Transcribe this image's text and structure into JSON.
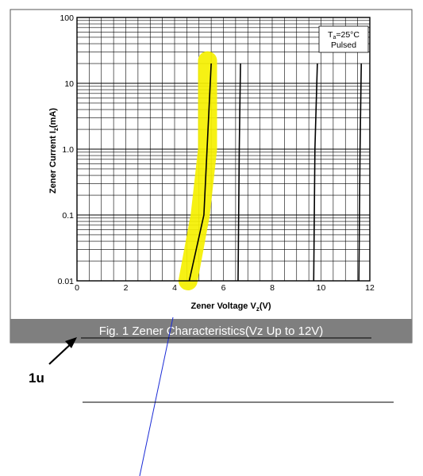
{
  "figure": {
    "caption": "Fig. 1  Zener Characteristics(Vz Up to 12V)",
    "annotation_text": "1u"
  },
  "chart_data": {
    "type": "line",
    "xlabel_main": "Zener Voltage  V",
    "xlabel_sub": "z",
    "xlabel_unit": "(V)",
    "ylabel_main": "Zener Current  I",
    "ylabel_sub": "z",
    "ylabel_unit": "(mA)",
    "xlim": [
      0,
      12
    ],
    "ylim": [
      0.01,
      100
    ],
    "yscale": "log",
    "grid": true,
    "x_ticks": [
      0,
      2,
      4,
      6,
      8,
      10,
      12
    ],
    "x_tick_labels": [
      "0",
      "2",
      "4",
      "6",
      "8",
      "10",
      "12"
    ],
    "y_ticks": [
      0.01,
      0.1,
      1.0,
      10,
      100
    ],
    "y_tick_labels": [
      "0.01",
      "0.1",
      "1.0",
      "10",
      "100"
    ],
    "legend_box": {
      "line1_main": "T",
      "line1_sub": "a",
      "line1_rest": "=25°C",
      "line2": "Pulsed",
      "placement": "top-right"
    },
    "series": [
      {
        "x": [
          4.6,
          5.2,
          5.5
        ],
        "y": [
          0.01,
          0.1,
          20
        ]
      },
      {
        "x": [
          6.6,
          6.65,
          6.7
        ],
        "y": [
          0.01,
          1,
          20
        ]
      },
      {
        "x": [
          9.7,
          9.75,
          9.85
        ],
        "y": [
          0.01,
          1,
          20
        ]
      },
      {
        "x": [
          11.55,
          11.6,
          11.65
        ],
        "y": [
          0.01,
          1,
          20
        ]
      }
    ],
    "highlight": {
      "color": "#f5f000",
      "x": [
        4.55,
        5.05,
        5.35,
        5.35
      ],
      "y": [
        0.01,
        0.1,
        1,
        22
      ]
    }
  },
  "colors": {
    "caption_band": "#7f7f7f",
    "caption_text": "#ffffff",
    "frame": "#555555",
    "grid": "#000000",
    "markup_blue": "#1a2bd6",
    "markup_black": "#000000"
  }
}
